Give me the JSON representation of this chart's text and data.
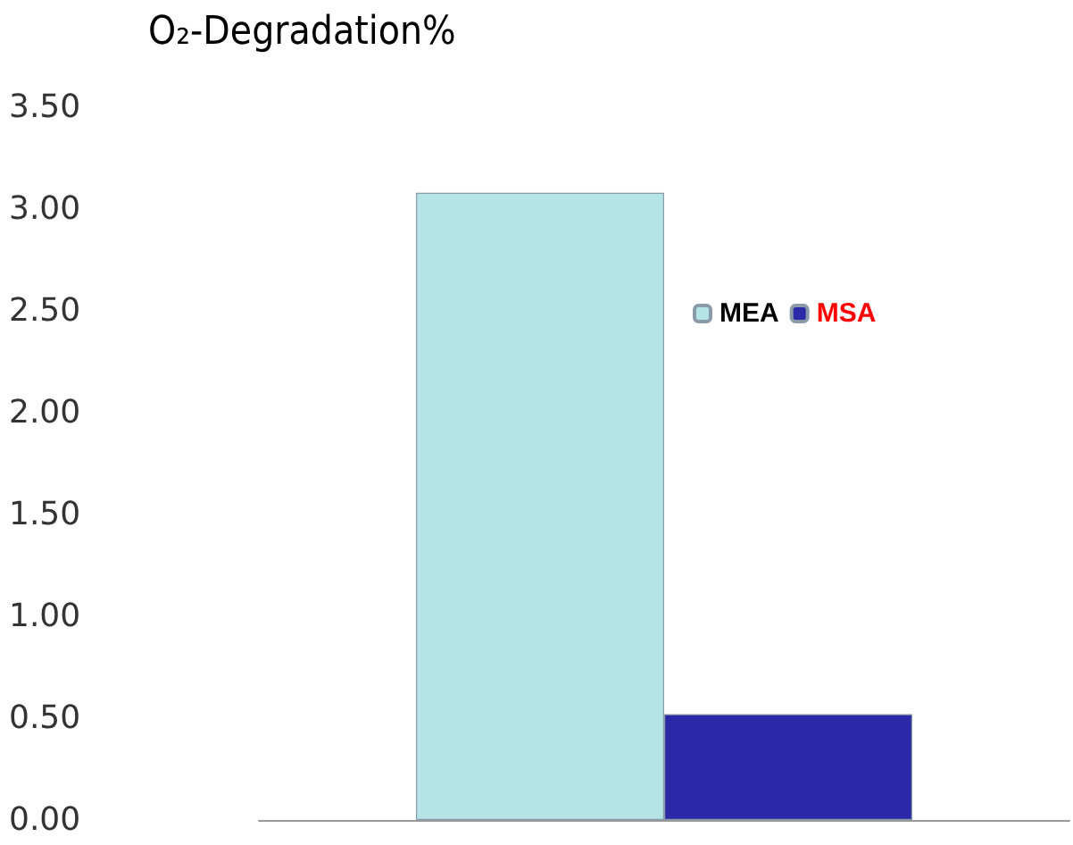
{
  "chart_data": {
    "type": "bar",
    "title": "O₂-Degradation%",
    "categories": [
      null
    ],
    "series": [
      {
        "name": "MEA",
        "color": "#b4e4e8",
        "values": [
          3.08
        ]
      },
      {
        "name": "MSA",
        "color": "#2a2aa8",
        "values": [
          0.52
        ]
      }
    ],
    "ylim": [
      0,
      3.5
    ],
    "yticks": [
      {
        "value": 0,
        "label": "0.00"
      },
      {
        "value": 0.5,
        "label": "0.50"
      },
      {
        "value": 1,
        "label": "1.00"
      },
      {
        "value": 1.5,
        "label": "1.50"
      },
      {
        "value": 2,
        "label": "2.00"
      },
      {
        "value": 2.5,
        "label": "2.50"
      },
      {
        "value": 3,
        "label": "3.00"
      },
      {
        "value": 3.5,
        "label": "3.50"
      }
    ],
    "grid": false,
    "legend": "right"
  }
}
